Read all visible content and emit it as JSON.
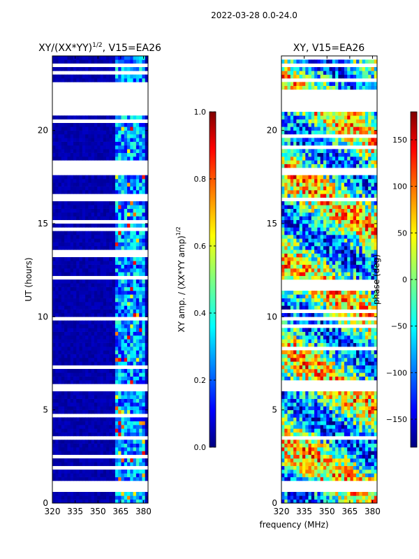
{
  "suptitle": "2022-03-28 0.0-24.0",
  "xlabel": "frequency (MHz)",
  "chart_data": [
    {
      "type": "heatmap",
      "title": "XY/(XX*YY)1/2, V15=EA26",
      "title_main": "XY/(XX*YY)",
      "title_sup": "1/2",
      "title_tail": ", V15=EA26",
      "xlabel": "frequency (MHz)",
      "ylabel": "UT (hours)",
      "xlim": [
        320,
        383
      ],
      "ylim": [
        0,
        24
      ],
      "xticks": [
        320,
        335,
        350,
        365,
        380
      ],
      "yticks": [
        0,
        5,
        10,
        15,
        20
      ],
      "colormap": "jet",
      "colorbar": {
        "label": "XY amp. / (XX*YY amp)1/2",
        "label_main": "XY amp. / (XX*YY amp)",
        "label_sup": "1/2",
        "range": [
          0.0,
          1.0
        ],
        "ticks": [
          "0.0",
          "0.2",
          "0.4",
          "0.6",
          "0.8",
          "1.0"
        ]
      },
      "active_band_MHz": [
        361,
        381
      ],
      "flagged_time_ranges_hours": [
        [
          0.45,
          1.1
        ],
        [
          3.35,
          3.6
        ],
        [
          6.0,
          6.35
        ],
        [
          9.75,
          9.95
        ],
        [
          17.6,
          18.0
        ],
        [
          20.95,
          22.2
        ],
        [
          23.3,
          23.45
        ]
      ]
    },
    {
      "type": "heatmap",
      "title": "XY, V15=EA26",
      "xlabel": "frequency (MHz)",
      "ylabel": "",
      "xlim": [
        320,
        383
      ],
      "ylim": [
        0,
        24
      ],
      "xticks": [
        320,
        335,
        350,
        365,
        380
      ],
      "yticks": [
        0,
        5,
        10,
        15,
        20
      ],
      "colormap": "jet",
      "colorbar": {
        "label": "phase (deg)",
        "range": [
          -180,
          180
        ],
        "ticks": [
          "-150",
          "-100",
          "-50",
          "0",
          "50",
          "100",
          "150"
        ]
      },
      "flagged_time_ranges_hours": [
        [
          0.45,
          1.1
        ],
        [
          3.35,
          3.6
        ],
        [
          6.0,
          6.35
        ],
        [
          9.75,
          9.95
        ],
        [
          17.6,
          18.0
        ],
        [
          20.95,
          22.2
        ],
        [
          23.3,
          23.45
        ]
      ]
    }
  ],
  "colors": {
    "jet": [
      "#00007f",
      "#0000ff",
      "#007fff",
      "#00ffff",
      "#7fff7f",
      "#ffff00",
      "#ff7f00",
      "#ff0000",
      "#7f0000"
    ]
  }
}
